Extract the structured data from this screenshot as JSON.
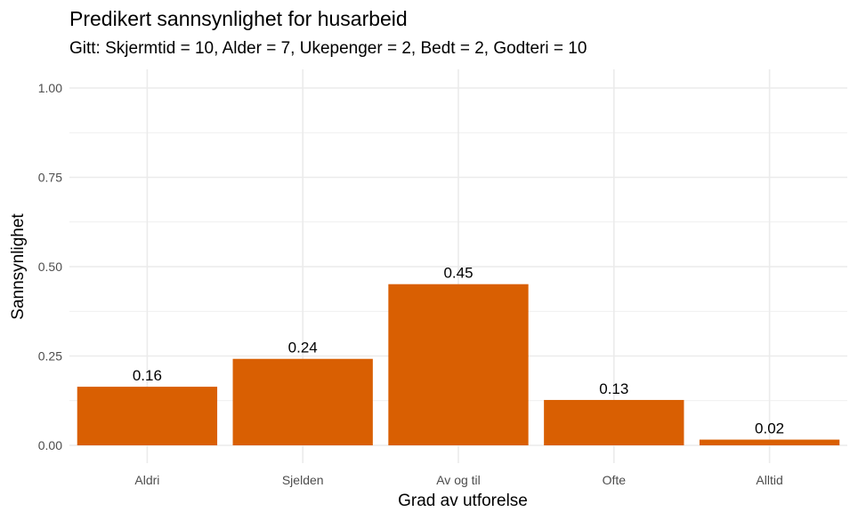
{
  "chart_data": {
    "type": "bar",
    "title": "Predikert sannsynlighet for husarbeid",
    "subtitle": "Gitt: Skjermtid = 10, Alder = 7, Ukepenger = 2, Bedt = 2, Godteri = 10",
    "xlabel": "Grad av utforelse",
    "ylabel": "Sannsynlighet",
    "categories": [
      "Aldri",
      "Sjelden",
      "Av og til",
      "Ofte",
      "Alltid"
    ],
    "values": [
      0.164,
      0.242,
      0.451,
      0.127,
      0.016
    ],
    "data_labels": [
      "0.16",
      "0.24",
      "0.45",
      "0.13",
      "0.02"
    ],
    "ylim": [
      0,
      1
    ],
    "yticks": [
      0,
      0.25,
      0.5,
      0.75,
      1
    ],
    "ytick_labels": [
      "0.00",
      "0.25",
      "0.50",
      "0.75",
      "1.00"
    ],
    "grid": true,
    "bar_color": "#D95F02",
    "grid_color": "#EBEBEB"
  }
}
